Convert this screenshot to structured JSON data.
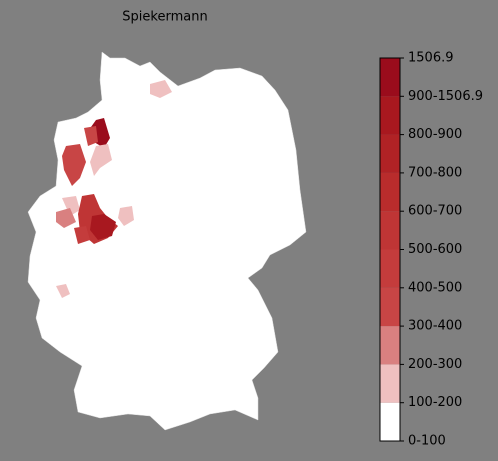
{
  "title": "Spiekermann",
  "legend": {
    "labels": [
      "0-100",
      "100-200",
      "200-300",
      "300-400",
      "400-500",
      "500-600",
      "600-700",
      "700-800",
      "800-900",
      "900-1506.9",
      "1506.9"
    ],
    "colors": [
      "#ffffff",
      "#efc0c0",
      "#d98080",
      "#c84545",
      "#c43c3c",
      "#bf3535",
      "#b92c2c",
      "#b02225",
      "#a8181f",
      "#9a0c1c"
    ]
  }
}
